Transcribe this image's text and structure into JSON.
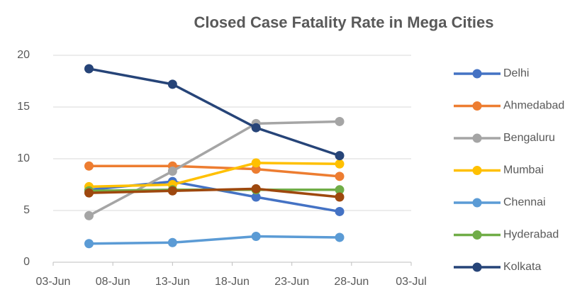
{
  "chart_data": {
    "type": "line",
    "title": "Closed Case Fatality Rate in Mega Cities",
    "x": [
      "06-Jun",
      "13-Jun",
      "20-Jun",
      "27-Jun"
    ],
    "xlim": [
      "03-Jun",
      "03-Jul"
    ],
    "xticks": [
      "03-Jun",
      "08-Jun",
      "13-Jun",
      "18-Jun",
      "23-Jun",
      "28-Jun",
      "03-Jul"
    ],
    "ylim": [
      0,
      20
    ],
    "yticks": [
      0,
      5,
      10,
      15,
      20
    ],
    "grid": true,
    "legend": "right",
    "series": [
      {
        "name": "Delhi",
        "color": "#4472c4",
        "values": [
          7.0,
          7.8,
          6.3,
          4.9
        ]
      },
      {
        "name": "Ahmedabad",
        "color": "#ed7d31",
        "values": [
          9.3,
          9.3,
          9.0,
          8.3
        ]
      },
      {
        "name": "Bengaluru",
        "color": "#a5a5a5",
        "values": [
          4.5,
          8.8,
          13.4,
          13.6
        ]
      },
      {
        "name": "Mumbai",
        "color": "#ffc000",
        "values": [
          7.3,
          7.5,
          9.6,
          9.5
        ]
      },
      {
        "name": "Chennai",
        "color": "#5b9bd5",
        "values": [
          1.8,
          1.9,
          2.5,
          2.4
        ]
      },
      {
        "name": "Hyderabad",
        "color": "#70ad47",
        "values": [
          6.9,
          7.0,
          7.0,
          7.0
        ]
      },
      {
        "name": "Kolkata",
        "color": "#264478",
        "values": [
          18.7,
          17.2,
          13.0,
          10.3
        ]
      },
      {
        "name": null,
        "color": "#9e480e",
        "values": [
          6.7,
          6.9,
          7.1,
          6.3
        ]
      }
    ]
  }
}
